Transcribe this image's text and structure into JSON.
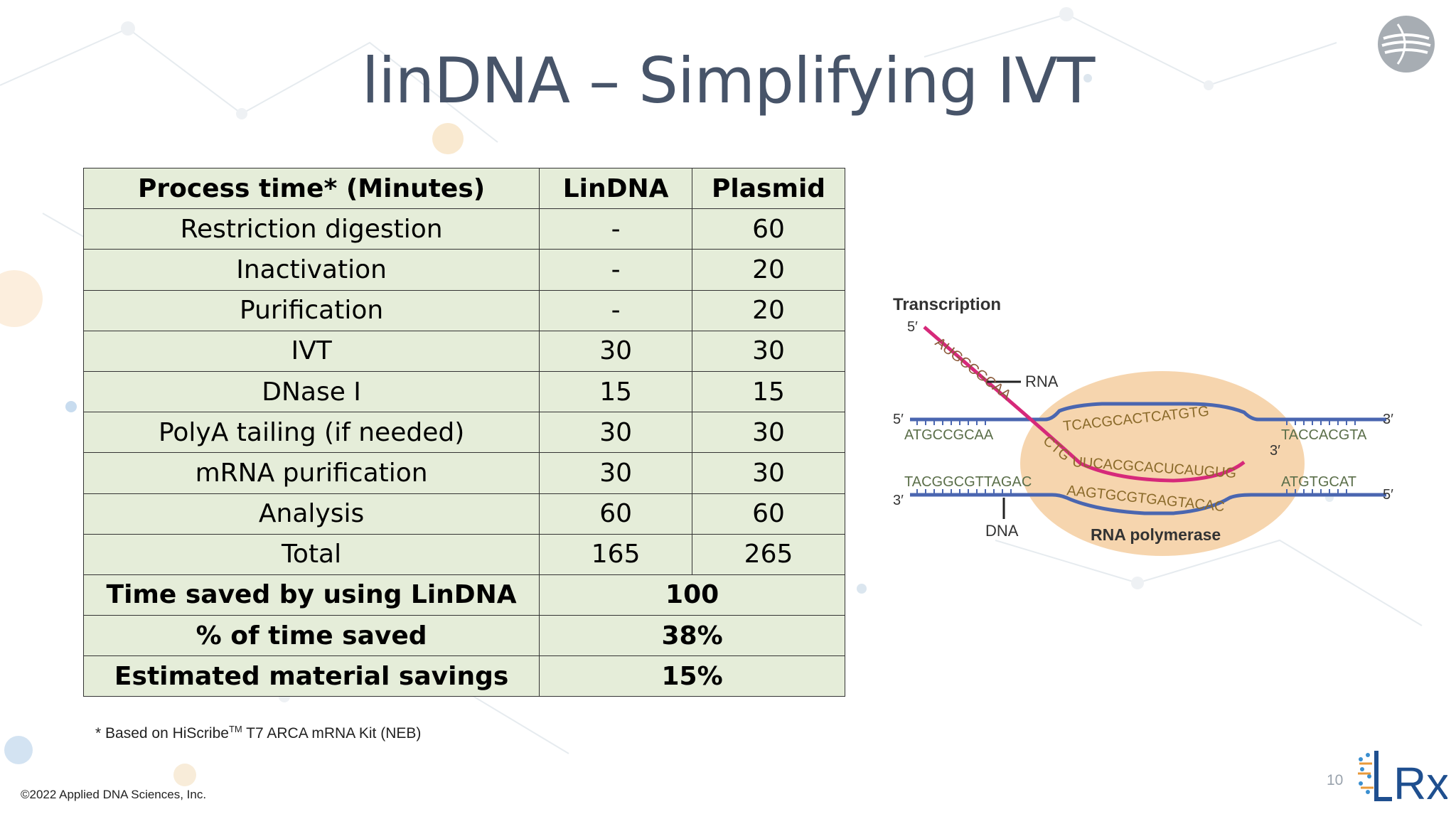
{
  "slide": {
    "title": "linDNA – Simplifying IVT",
    "page_number": "10",
    "copyright": "©2022 Applied DNA Sciences, Inc.",
    "footnote": {
      "prefix": "* Based on HiScribe",
      "superscript": "TM",
      "suffix": " T7 ARCA mRNA Kit (NEB)"
    },
    "logo_text": "Rx"
  },
  "table": {
    "headers": [
      "Process time* (Minutes)",
      "LinDNA",
      "Plasmid"
    ],
    "rows": [
      [
        "Restriction digestion",
        "-",
        "60"
      ],
      [
        "Inactivation",
        "-",
        "20"
      ],
      [
        "Purification",
        "-",
        "20"
      ],
      [
        "IVT",
        "30",
        "30"
      ],
      [
        "DNase I",
        "15",
        "15"
      ],
      [
        "PolyA tailing (if needed)",
        "30",
        "30"
      ],
      [
        "mRNA purification",
        "30",
        "30"
      ],
      [
        "Analysis",
        "60",
        "60"
      ],
      [
        "Total",
        "165",
        "265"
      ]
    ],
    "summary_rows": [
      [
        "Time saved by using LinDNA",
        "100"
      ],
      [
        "% of time saved",
        "38%"
      ],
      [
        "Estimated material savings",
        "15%"
      ]
    ]
  },
  "diagram": {
    "title": "Transcription",
    "rna_label": "RNA",
    "dna_label": "DNA",
    "polymerase_label": "RNA polymerase",
    "rna_5prime_seq": "AUGCCGCAA",
    "top_left_seq": "ATGCCGCAA",
    "top_mid_seq": "TCACGCACTCATGTG",
    "top_right_seq": "TACCACGTA",
    "bottom_left_seq": "TACGGCGTTAGAC",
    "bottom_mid_seq": "AAGTGCGTGAGTACAC",
    "bottom_right_seq": "ATGTGCAT",
    "rna_mid_seq": "UUCACGCACUCAUGUG",
    "rna_ctg": "CTG",
    "five_prime": "5′",
    "three_prime": "3′"
  },
  "colors": {
    "title": "#475469",
    "table_fill": "#e5edd9",
    "rna_strand": "#d6297a",
    "dna_strand": "#4a66b0",
    "polymerase": "#f5c99a"
  }
}
